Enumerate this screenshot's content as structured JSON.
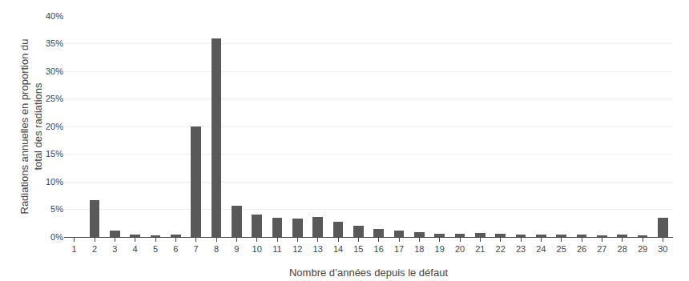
{
  "chart_data": {
    "type": "bar",
    "x": [
      1,
      2,
      3,
      4,
      5,
      6,
      7,
      8,
      9,
      10,
      11,
      12,
      13,
      14,
      15,
      16,
      17,
      18,
      19,
      20,
      21,
      22,
      23,
      24,
      25,
      26,
      27,
      28,
      29,
      30
    ],
    "values": [
      0.0,
      6.7,
      1.1,
      0.4,
      0.3,
      0.5,
      20.0,
      36.0,
      5.6,
      4.0,
      3.5,
      3.3,
      3.6,
      2.8,
      2.0,
      1.5,
      1.1,
      0.8,
      0.6,
      0.6,
      0.7,
      0.6,
      0.5,
      0.5,
      0.4,
      0.4,
      0.3,
      0.4,
      0.3,
      3.5
    ],
    "color": "#595959",
    "xlabel": "Nombre d’années depuis le défaut",
    "ylabel": "Radiations annuelles en proportion du\ntotal des radiations",
    "xlim": [
      0.5,
      30.5
    ],
    "xticks": [
      1,
      2,
      3,
      4,
      5,
      6,
      7,
      8,
      9,
      10,
      11,
      12,
      13,
      14,
      15,
      16,
      17,
      18,
      19,
      20,
      21,
      22,
      23,
      24,
      25,
      26,
      27,
      28,
      29,
      30
    ],
    "ylim": [
      0,
      40
    ],
    "yticks": [
      {
        "value": 0,
        "label": "0%"
      },
      {
        "value": 5,
        "label": "5%"
      },
      {
        "value": 10,
        "label": "10%"
      },
      {
        "value": 15,
        "label": "15%"
      },
      {
        "value": 20,
        "label": "20%"
      },
      {
        "value": 25,
        "label": "25%"
      },
      {
        "value": 30,
        "label": "30%"
      },
      {
        "value": 35,
        "label": "35%"
      },
      {
        "value": 40,
        "label": "40%"
      }
    ],
    "grid": true
  }
}
